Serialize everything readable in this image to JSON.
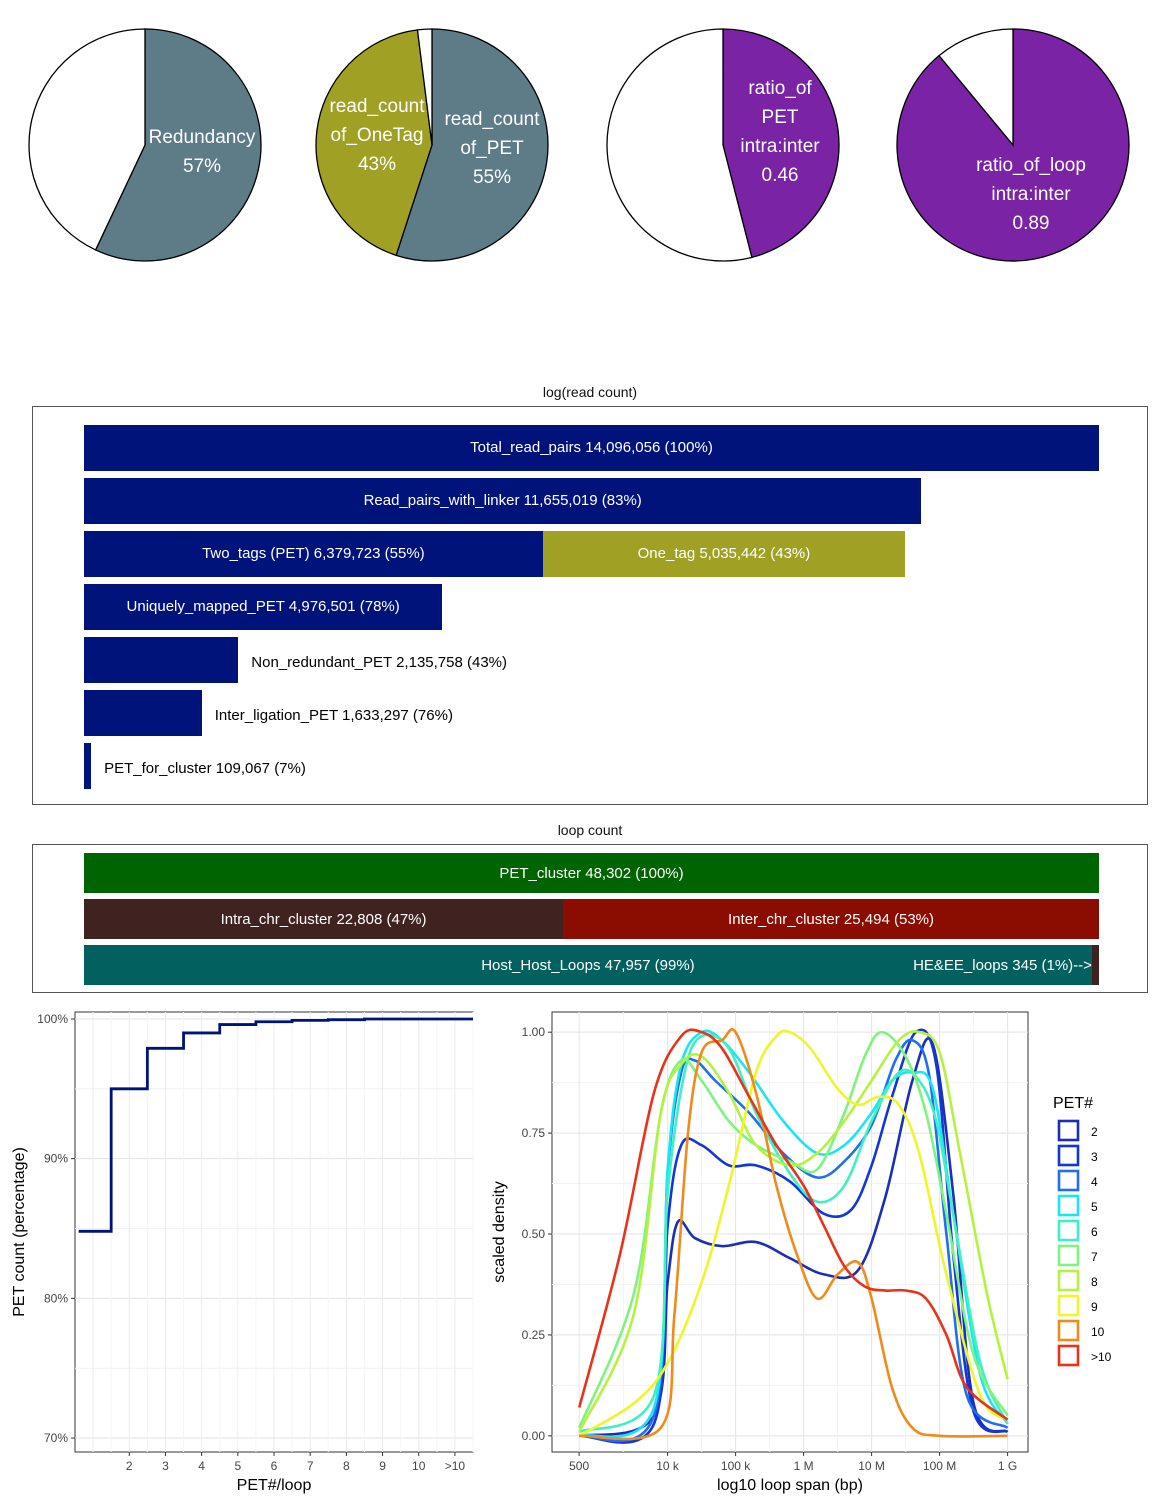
{
  "colors": {
    "navy": "#00137a",
    "olive": "#a0a025",
    "slate": "#5e7b88",
    "purple": "#7a23a5",
    "green": "#006400",
    "brown": "#402320",
    "darkred": "#8b0c00",
    "teal": "#02605f"
  },
  "pies": [
    {
      "lines": [
        "Redundancy",
        "57%"
      ],
      "value": 0.57,
      "slices": [
        {
          "name": "Redundancy",
          "fraction": 0.57,
          "color": "#5e7b88"
        },
        {
          "name": "other",
          "fraction": 0.43,
          "color": "#ffffff"
        }
      ]
    },
    {
      "lines": [],
      "value": 0.55,
      "slices": [
        {
          "name": "read_count of_PET",
          "fraction": 0.55,
          "color": "#5e7b88"
        },
        {
          "name": "read_count of_OneTag",
          "fraction": 0.43,
          "color": "#a0a025"
        },
        {
          "name": "other",
          "fraction": 0.02,
          "color": "#ffffff"
        }
      ],
      "labels": [
        {
          "lines": [
            "read_count",
            "of_OneTag",
            "43%"
          ]
        },
        {
          "lines": [
            "read_count",
            "of_PET",
            "55%"
          ]
        }
      ]
    },
    {
      "lines": [
        "ratio_of",
        "PET",
        "intra:inter",
        "0.46"
      ],
      "value": 0.46,
      "slices": [
        {
          "name": "ratio_of PET",
          "fraction": 0.46,
          "color": "#7a23a5"
        },
        {
          "name": "other",
          "fraction": 0.54,
          "color": "#ffffff"
        }
      ]
    },
    {
      "lines": [
        "ratio_of_loop",
        "intra:inter",
        "0.89"
      ],
      "value": 0.89,
      "slices": [
        {
          "name": "ratio_of_loop",
          "fraction": 0.89,
          "color": "#7a23a5"
        },
        {
          "name": "other",
          "fraction": 0.11,
          "color": "#ffffff"
        }
      ]
    }
  ],
  "readcount": {
    "title": "log(read count)",
    "rows": [
      {
        "segments": [
          {
            "label": "Total_read_pairs 14,096,056 (100%)",
            "value": 1.0,
            "color": "#00137a",
            "inside": true
          }
        ]
      },
      {
        "segments": [
          {
            "label": "Read_pairs_with_linker 11,655,019 (83%)",
            "value": 0.825,
            "color": "#00137a",
            "inside": true
          }
        ]
      },
      {
        "segments": [
          {
            "label": "Two_tags (PET) 6,379,723 (55%)",
            "value": 0.452,
            "color": "#00137a",
            "inside": true
          },
          {
            "label": "One_tag 5,035,442 (43%)",
            "value": 0.357,
            "color": "#a0a025",
            "inside": true
          }
        ]
      },
      {
        "segments": [
          {
            "label": "Uniquely_mapped_PET 4,976,501 (78%)",
            "value": 0.353,
            "color": "#00137a",
            "inside": true
          }
        ]
      },
      {
        "segments": [
          {
            "label": "Non_redundant_PET 2,135,758 (43%)",
            "value": 0.152,
            "color": "#00137a",
            "inside": false
          }
        ]
      },
      {
        "segments": [
          {
            "label": "Inter_ligation_PET 1,633,297 (76%)",
            "value": 0.116,
            "color": "#00137a",
            "inside": false
          }
        ]
      },
      {
        "segments": [
          {
            "label": "PET_for_cluster 109,067 (7%)",
            "value": 0.007,
            "color": "#00137a",
            "inside": false
          }
        ]
      }
    ]
  },
  "loopcount": {
    "title": "loop count",
    "rows": [
      {
        "segments": [
          {
            "label": "PET_cluster 48,302 (100%)",
            "value": 1.0,
            "color": "#006400",
            "align": "center"
          }
        ]
      },
      {
        "segments": [
          {
            "label": "Intra_chr_cluster 22,808 (47%)",
            "value": 0.472,
            "color": "#402320",
            "align": "center"
          },
          {
            "label": "Inter_chr_cluster 25,494 (53%)",
            "value": 0.528,
            "color": "#8b0c00",
            "align": "center"
          }
        ]
      },
      {
        "segments": [
          {
            "label": "Host_Host_Loops 47,957 (99%)",
            "value": 0.993,
            "color": "#02605f",
            "align": "center"
          },
          {
            "label": "",
            "value": 0.007,
            "color": "#402320",
            "align": "center"
          }
        ],
        "extra_label": "HE&EE_loops 345 (1%)-->"
      }
    ]
  },
  "chart_data": [
    {
      "type": "line",
      "title": "",
      "xlabel": "PET#/loop",
      "ylabel": "PET count (percentage)",
      "x_ticks": [
        "2",
        "3",
        "4",
        "5",
        "6",
        "7",
        "8",
        "9",
        "10",
        ">10"
      ],
      "y_ticks": [
        "70%",
        "80%",
        "90%",
        "100%"
      ],
      "ylim": [
        69,
        100.5
      ],
      "step_values": [
        84.8,
        95.0,
        97.9,
        99.0,
        99.6,
        99.8,
        99.9,
        99.95,
        100.0,
        100.0,
        100.0
      ],
      "x_positions": [
        1,
        2,
        3,
        4,
        5,
        6,
        7,
        8,
        9,
        10,
        11
      ]
    },
    {
      "type": "line",
      "title": "",
      "xlabel": "log10 loop span (bp)",
      "ylabel": "scaled density",
      "x_ticks": [
        "500",
        "10 k",
        "100 k",
        "1 M",
        "10 M",
        "100 M",
        "1 G"
      ],
      "x_tick_log10": [
        2.699,
        4,
        5,
        6,
        7,
        8,
        9
      ],
      "y_ticks": [
        "0.00",
        "0.25",
        "0.50",
        "0.75",
        "1.00"
      ],
      "ylim": [
        -0.04,
        1.05
      ],
      "legend_title": "PET#",
      "series": [
        {
          "name": "2",
          "color": "#1a2fb5",
          "x": [
            2.7,
            3.8,
            4.0,
            4.15,
            4.4,
            4.8,
            5.3,
            5.8,
            6.3,
            6.8,
            7.2,
            7.6,
            7.9,
            8.2,
            8.5,
            9.0
          ],
          "y": [
            0.0,
            0.05,
            0.38,
            0.53,
            0.49,
            0.47,
            0.48,
            0.44,
            0.4,
            0.41,
            0.59,
            0.88,
            0.97,
            0.6,
            0.08,
            0.01
          ]
        },
        {
          "name": "3",
          "color": "#1336d6",
          "x": [
            2.7,
            3.8,
            4.0,
            4.2,
            4.5,
            4.9,
            5.3,
            5.8,
            6.3,
            6.7,
            7.0,
            7.3,
            7.65,
            7.95,
            8.2,
            8.5,
            9.0
          ],
          "y": [
            0.0,
            0.03,
            0.52,
            0.72,
            0.72,
            0.67,
            0.67,
            0.63,
            0.55,
            0.56,
            0.67,
            0.84,
            1.0,
            0.92,
            0.45,
            0.06,
            0.01
          ]
        },
        {
          "name": "4",
          "color": "#1f6ff0",
          "x": [
            2.7,
            3.8,
            4.0,
            4.2,
            4.4,
            4.7,
            5.2,
            5.7,
            6.2,
            6.6,
            7.0,
            7.35,
            7.6,
            7.85,
            8.1,
            8.4,
            9.0
          ],
          "y": [
            0.0,
            0.05,
            0.65,
            0.9,
            0.93,
            0.88,
            0.8,
            0.7,
            0.64,
            0.68,
            0.77,
            0.93,
            0.98,
            0.89,
            0.5,
            0.1,
            0.02
          ]
        },
        {
          "name": "5",
          "color": "#19e5f5",
          "x": [
            2.7,
            3.8,
            4.0,
            4.2,
            4.5,
            4.8,
            5.2,
            5.7,
            6.2,
            6.6,
            7.0,
            7.3,
            7.6,
            7.9,
            8.2,
            8.6,
            9.0
          ],
          "y": [
            0.0,
            0.07,
            0.66,
            0.92,
            1.0,
            0.98,
            0.9,
            0.78,
            0.7,
            0.72,
            0.8,
            0.88,
            0.9,
            0.86,
            0.55,
            0.15,
            0.03
          ]
        },
        {
          "name": "6",
          "color": "#3ef0c2",
          "x": [
            2.7,
            3.8,
            4.0,
            4.25,
            4.5,
            4.9,
            5.3,
            5.8,
            6.2,
            6.6,
            7.0,
            7.4,
            7.7,
            7.95,
            8.2,
            8.6,
            9.0
          ],
          "y": [
            0.01,
            0.1,
            0.6,
            0.9,
            0.99,
            0.96,
            0.8,
            0.65,
            0.58,
            0.62,
            0.78,
            0.9,
            0.88,
            0.78,
            0.55,
            0.18,
            0.03
          ]
        },
        {
          "name": "7",
          "color": "#7ef37e",
          "x": [
            2.7,
            3.5,
            3.9,
            4.2,
            4.5,
            4.9,
            5.3,
            5.8,
            6.2,
            6.6,
            6.9,
            7.15,
            7.5,
            7.8,
            8.1,
            8.5,
            9.0
          ],
          "y": [
            0.02,
            0.35,
            0.8,
            0.93,
            0.88,
            0.78,
            0.72,
            0.68,
            0.66,
            0.8,
            0.94,
            1.0,
            0.94,
            0.8,
            0.55,
            0.2,
            0.05
          ]
        },
        {
          "name": "8",
          "color": "#b5f23f",
          "x": [
            2.7,
            3.5,
            3.9,
            4.2,
            4.5,
            4.9,
            5.3,
            5.8,
            6.2,
            6.6,
            7.0,
            7.4,
            7.7,
            8.0,
            8.3,
            8.7,
            9.0
          ],
          "y": [
            0.01,
            0.3,
            0.8,
            0.92,
            0.94,
            0.85,
            0.72,
            0.67,
            0.7,
            0.78,
            0.88,
            0.98,
            1.0,
            0.95,
            0.7,
            0.35,
            0.14
          ]
        },
        {
          "name": "9",
          "color": "#f0f52a",
          "x": [
            2.7,
            3.5,
            4.0,
            4.5,
            4.9,
            5.3,
            5.6,
            5.8,
            6.1,
            6.5,
            6.8,
            7.1,
            7.4,
            7.7,
            8.1,
            8.6,
            9.0
          ],
          "y": [
            0.0,
            0.08,
            0.18,
            0.38,
            0.62,
            0.9,
            0.99,
            1.0,
            0.96,
            0.86,
            0.82,
            0.84,
            0.82,
            0.7,
            0.4,
            0.1,
            0.04
          ]
        },
        {
          "name": "10",
          "color": "#f08a1c",
          "x": [
            2.7,
            3.9,
            4.1,
            4.3,
            4.5,
            4.8,
            5.0,
            5.3,
            5.6,
            5.9,
            6.2,
            6.5,
            6.8,
            7.0,
            7.3,
            7.6,
            8.0,
            9.0
          ],
          "y": [
            0.0,
            0.02,
            0.3,
            0.75,
            0.95,
            0.98,
            1.0,
            0.85,
            0.62,
            0.45,
            0.34,
            0.4,
            0.43,
            0.34,
            0.12,
            0.02,
            0.0,
            0.0
          ]
        },
        {
          "name": ">10",
          "color": "#e8321a",
          "x": [
            2.7,
            3.3,
            3.8,
            4.2,
            4.5,
            4.8,
            5.2,
            5.6,
            6.0,
            6.3,
            6.6,
            6.9,
            7.2,
            7.5,
            7.8,
            8.1,
            8.4,
            9.0
          ],
          "y": [
            0.07,
            0.45,
            0.85,
            0.99,
            1.0,
            0.96,
            0.84,
            0.72,
            0.62,
            0.52,
            0.42,
            0.37,
            0.36,
            0.36,
            0.34,
            0.25,
            0.12,
            0.04
          ]
        }
      ]
    }
  ]
}
